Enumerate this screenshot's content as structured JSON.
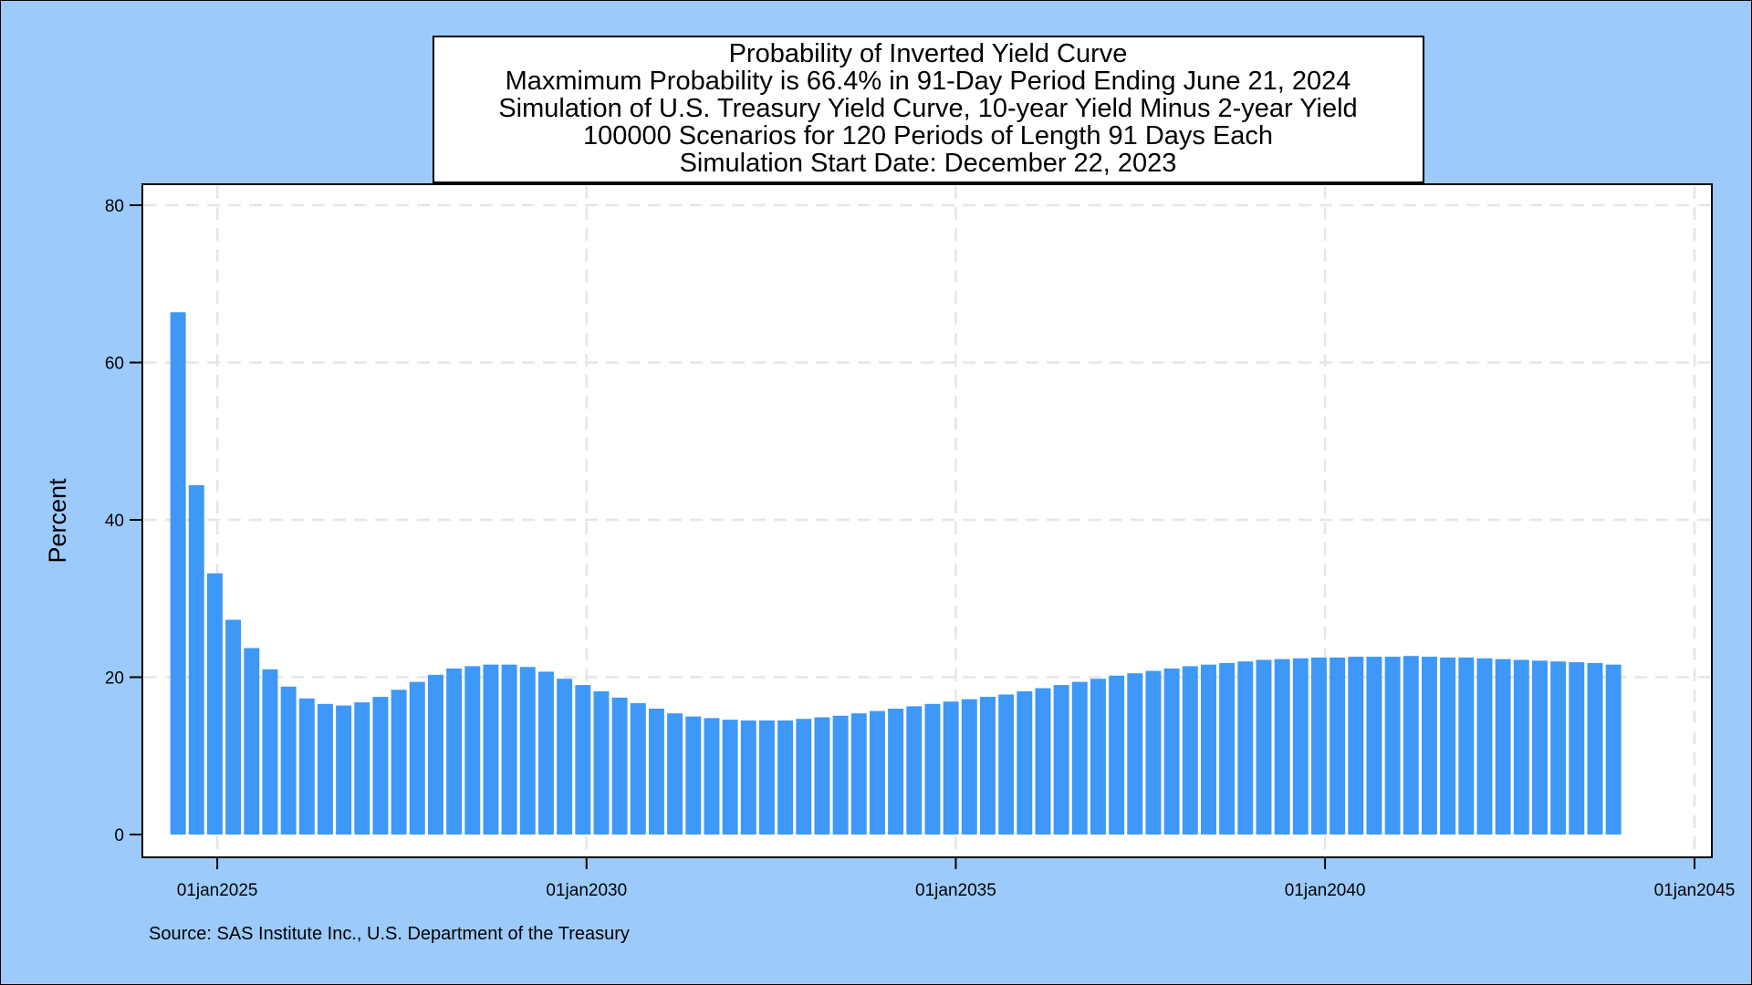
{
  "chart_data": {
    "type": "bar",
    "title_lines": [
      "Probability of Inverted Yield Curve",
      "Maxmimum Probability is 66.4% in 91-Day Period Ending June 21, 2024",
      "Simulation of U.S. Treasury Yield Curve, 10-year Yield Minus 2-year Yield",
      "100000 Scenarios for 120 Periods of Length 91 Days Each",
      "Simulation Start Date: December 22, 2023"
    ],
    "ylabel": "Percent",
    "xlabel": "",
    "ylim": [
      0,
      80
    ],
    "yticks": [
      0,
      20,
      40,
      60,
      80
    ],
    "x_axis": {
      "type": "date",
      "min": "2024-01-01",
      "max": "2045-01-01",
      "ticks": [
        "2025-01-01",
        "2030-01-01",
        "2035-01-01",
        "2040-01-01",
        "2045-01-01"
      ],
      "tick_labels": [
        "01jan2025",
        "01jan2030",
        "01jan2035",
        "01jan2040",
        "01jan2045"
      ]
    },
    "grid": true,
    "bar_color": "#3d98f7",
    "x": [
      "2024-06-21",
      "2024-09-20",
      "2024-12-20",
      "2025-03-21",
      "2025-06-20",
      "2025-09-19",
      "2025-12-19",
      "2026-03-20",
      "2026-06-19",
      "2026-09-18",
      "2026-12-18",
      "2027-03-19",
      "2027-06-18",
      "2027-09-17",
      "2027-12-17",
      "2028-03-17",
      "2028-06-16",
      "2028-09-15",
      "2028-12-15",
      "2029-03-16",
      "2029-06-15",
      "2029-09-14",
      "2029-12-14",
      "2030-03-15",
      "2030-06-14",
      "2030-09-13",
      "2030-12-13",
      "2031-03-14",
      "2031-06-13",
      "2031-09-12",
      "2031-12-12",
      "2032-03-12",
      "2032-06-11",
      "2032-09-10",
      "2032-12-10",
      "2033-03-11",
      "2033-06-10",
      "2033-09-09",
      "2033-12-09",
      "2034-03-10",
      "2034-06-09",
      "2034-09-08",
      "2034-12-08",
      "2035-03-09",
      "2035-06-08",
      "2035-09-07",
      "2035-12-07",
      "2036-03-07",
      "2036-06-06",
      "2036-09-05",
      "2036-12-05",
      "2037-03-06",
      "2037-06-05",
      "2037-09-04",
      "2037-12-04",
      "2038-03-05",
      "2038-06-04",
      "2038-09-03",
      "2038-12-03",
      "2039-03-04",
      "2039-06-03",
      "2039-09-02",
      "2039-12-02",
      "2040-03-02",
      "2040-06-01",
      "2040-08-31",
      "2040-11-30",
      "2041-03-01",
      "2041-05-31",
      "2041-08-30",
      "2041-11-29",
      "2042-02-28",
      "2042-05-30",
      "2042-08-29",
      "2042-11-28",
      "2043-02-27",
      "2043-05-29",
      "2043-08-28",
      "2043-11-27"
    ],
    "values": [
      66.4,
      44.4,
      33.2,
      27.3,
      23.7,
      21.0,
      18.8,
      17.3,
      16.6,
      16.4,
      16.8,
      17.5,
      18.4,
      19.4,
      20.3,
      21.1,
      21.4,
      21.6,
      21.6,
      21.3,
      20.7,
      19.8,
      19.0,
      18.2,
      17.4,
      16.7,
      16.0,
      15.4,
      15.0,
      14.8,
      14.6,
      14.5,
      14.5,
      14.5,
      14.7,
      14.9,
      15.1,
      15.4,
      15.7,
      16.0,
      16.3,
      16.6,
      16.9,
      17.2,
      17.5,
      17.8,
      18.2,
      18.6,
      19.0,
      19.4,
      19.8,
      20.2,
      20.5,
      20.8,
      21.1,
      21.4,
      21.6,
      21.8,
      22.0,
      22.2,
      22.3,
      22.4,
      22.5,
      22.5,
      22.6,
      22.6,
      22.6,
      22.7,
      22.6,
      22.5,
      22.5,
      22.4,
      22.3,
      22.2,
      22.1,
      22.0,
      21.9,
      21.8,
      21.6
    ]
  },
  "source_note": "Source: SAS Institute Inc., U.S. Department of the Treasury",
  "colors": {
    "background": "#9ccbfb",
    "plot_area": "#ffffff",
    "bar": "#3d98f7",
    "grid": "#e6e6e6"
  }
}
